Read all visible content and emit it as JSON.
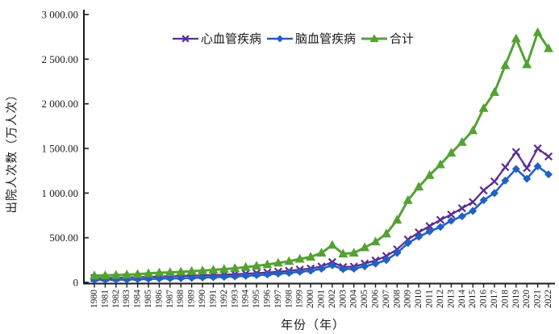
{
  "figure": {
    "background": "#ffffff",
    "axis_color": "#1a1a1a"
  },
  "chart_data": {
    "type": "line",
    "title": "",
    "xlabel": "年份（年）",
    "ylabel": "出院人次数（万人次）",
    "x": [
      1980,
      1981,
      1982,
      1983,
      1984,
      1985,
      1986,
      1987,
      1988,
      1989,
      1990,
      1991,
      1992,
      1993,
      1994,
      1995,
      1996,
      1997,
      1998,
      1999,
      2000,
      2001,
      2002,
      2003,
      2004,
      2005,
      2006,
      2007,
      2008,
      2009,
      2010,
      2011,
      2012,
      2013,
      2014,
      2015,
      2016,
      2017,
      2018,
      2019,
      2020,
      2021,
      2022
    ],
    "ylim": [
      0,
      3000
    ],
    "yticks": [
      0,
      500,
      1000,
      1500,
      2000,
      2500,
      3000
    ],
    "ytick_labels": [
      "0",
      "500.00",
      "1 000.00",
      "1 500.00",
      "2 000.00",
      "2 500.00",
      "3 000.00"
    ],
    "grid": false,
    "legend_position": "top-center-horizontal",
    "series": [
      {
        "id": "cardiovascular",
        "name": "心血管疾病",
        "color": "#5B2D94",
        "marker": "cross",
        "values": [
          48,
          50,
          52,
          55,
          58,
          62,
          66,
          68,
          72,
          75,
          78,
          82,
          86,
          91,
          97,
          104,
          111,
          120,
          130,
          143,
          155,
          178,
          227,
          172,
          177,
          210,
          245,
          295,
          370,
          480,
          560,
          630,
          700,
          760,
          830,
          900,
          1030,
          1130,
          1290,
          1460,
          1280,
          1500,
          1410
        ]
      },
      {
        "id": "cerebrovascular",
        "name": "脑血管疾病",
        "color": "#2261C4",
        "marker": "diamond",
        "values": [
          27,
          28,
          30,
          31,
          34,
          38,
          42,
          44,
          46,
          50,
          54,
          58,
          62,
          67,
          73,
          81,
          89,
          98,
          106,
          119,
          130,
          152,
          191,
          148,
          153,
          180,
          210,
          250,
          330,
          440,
          510,
          570,
          620,
          690,
          740,
          800,
          920,
          1000,
          1140,
          1270,
          1160,
          1300,
          1210
        ]
      },
      {
        "id": "total",
        "name": "合计",
        "color": "#54A233",
        "marker": "triangle",
        "values": [
          75,
          78,
          82,
          86,
          92,
          100,
          108,
          112,
          118,
          125,
          132,
          140,
          148,
          158,
          170,
          185,
          200,
          218,
          236,
          262,
          285,
          330,
          418,
          320,
          330,
          390,
          455,
          545,
          700,
          920,
          1070,
          1200,
          1320,
          1450,
          1570,
          1700,
          1950,
          2130,
          2430,
          2730,
          2440,
          2800,
          2620
        ]
      }
    ]
  }
}
